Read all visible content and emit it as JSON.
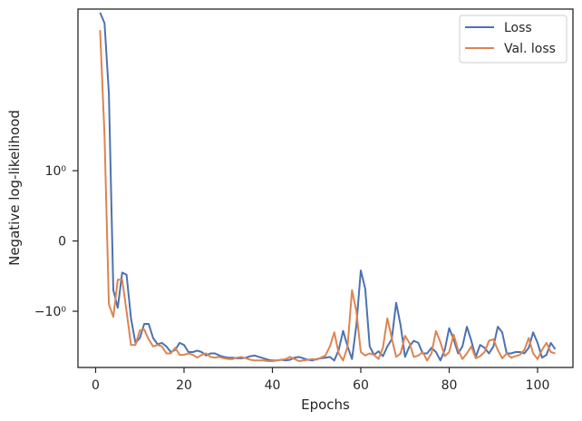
{
  "chart_data": {
    "type": "line",
    "title": "",
    "xlabel": "Epochs",
    "ylabel": "Negative log-likelihood",
    "yscale": "symlog",
    "xlim": [
      -4,
      108
    ],
    "ylim": [
      -1.8,
      3.3
    ],
    "grid": false,
    "legend": "top-right",
    "x_ticks": [
      0,
      20,
      40,
      60,
      80,
      100
    ],
    "x_tick_labels": [
      "0",
      "20",
      "40",
      "60",
      "80",
      "100"
    ],
    "y_ticks": [
      1,
      0,
      -1
    ],
    "y_tick_labels": [
      "10⁰",
      "0",
      "−10⁰"
    ],
    "series": [
      {
        "name": "Loss",
        "color": "#4c72b0",
        "x": [
          1,
          2,
          3,
          4,
          5,
          6,
          7,
          8,
          9,
          10,
          11,
          12,
          13,
          14,
          15,
          16,
          17,
          18,
          19,
          20,
          21,
          22,
          23,
          24,
          25,
          26,
          27,
          28,
          29,
          30,
          31,
          32,
          33,
          34,
          35,
          36,
          37,
          38,
          39,
          40,
          41,
          42,
          43,
          44,
          45,
          46,
          47,
          48,
          49,
          50,
          51,
          52,
          53,
          54,
          55,
          56,
          57,
          58,
          59,
          60,
          61,
          62,
          63,
          64,
          65,
          66,
          67,
          68,
          69,
          70,
          71,
          72,
          73,
          74,
          75,
          76,
          77,
          78,
          79,
          80,
          81,
          82,
          83,
          84,
          85,
          86,
          87,
          88,
          89,
          90,
          91,
          92,
          93,
          94,
          95,
          96,
          97,
          98,
          99,
          100,
          101,
          102,
          103,
          104
        ],
        "y": [
          3.25,
          3.1,
          2.1,
          -0.7,
          -0.95,
          -0.45,
          -0.48,
          -1.1,
          -1.45,
          -1.38,
          -1.18,
          -1.18,
          -1.38,
          -1.47,
          -1.45,
          -1.5,
          -1.58,
          -1.55,
          -1.45,
          -1.48,
          -1.58,
          -1.58,
          -1.56,
          -1.58,
          -1.63,
          -1.6,
          -1.6,
          -1.63,
          -1.65,
          -1.66,
          -1.66,
          -1.67,
          -1.67,
          -1.66,
          -1.64,
          -1.63,
          -1.65,
          -1.67,
          -1.69,
          -1.7,
          -1.7,
          -1.69,
          -1.7,
          -1.69,
          -1.66,
          -1.65,
          -1.67,
          -1.69,
          -1.7,
          -1.68,
          -1.67,
          -1.66,
          -1.65,
          -1.7,
          -1.55,
          -1.28,
          -1.5,
          -1.68,
          -1.2,
          -0.42,
          -0.68,
          -1.5,
          -1.62,
          -1.57,
          -1.64,
          -1.5,
          -1.4,
          -0.88,
          -1.2,
          -1.65,
          -1.5,
          -1.42,
          -1.45,
          -1.6,
          -1.6,
          -1.52,
          -1.58,
          -1.7,
          -1.55,
          -1.24,
          -1.4,
          -1.6,
          -1.5,
          -1.22,
          -1.42,
          -1.65,
          -1.48,
          -1.52,
          -1.6,
          -1.5,
          -1.22,
          -1.3,
          -1.6,
          -1.6,
          -1.58,
          -1.58,
          -1.6,
          -1.52,
          -1.3,
          -1.45,
          -1.66,
          -1.62,
          -1.45,
          -1.54
        ]
      },
      {
        "name": "Val. loss",
        "color": "#dd8452",
        "x": [
          1,
          2,
          3,
          4,
          5,
          6,
          7,
          8,
          9,
          10,
          11,
          12,
          13,
          14,
          15,
          16,
          17,
          18,
          19,
          20,
          21,
          22,
          23,
          24,
          25,
          26,
          27,
          28,
          29,
          30,
          31,
          32,
          33,
          34,
          35,
          36,
          37,
          38,
          39,
          40,
          41,
          42,
          43,
          44,
          45,
          46,
          47,
          48,
          49,
          50,
          51,
          52,
          53,
          54,
          55,
          56,
          57,
          58,
          59,
          60,
          61,
          62,
          63,
          64,
          65,
          66,
          67,
          68,
          69,
          70,
          71,
          72,
          73,
          74,
          75,
          76,
          77,
          78,
          79,
          80,
          81,
          82,
          83,
          84,
          85,
          86,
          87,
          88,
          89,
          90,
          91,
          92,
          93,
          94,
          95,
          96,
          97,
          98,
          99,
          100,
          101,
          102,
          103,
          104
        ],
        "y": [
          3.0,
          1.5,
          -0.9,
          -1.08,
          -0.55,
          -0.55,
          -1.0,
          -1.48,
          -1.48,
          -1.27,
          -1.26,
          -1.4,
          -1.5,
          -1.48,
          -1.5,
          -1.6,
          -1.6,
          -1.52,
          -1.62,
          -1.62,
          -1.6,
          -1.62,
          -1.66,
          -1.62,
          -1.6,
          -1.65,
          -1.66,
          -1.65,
          -1.67,
          -1.68,
          -1.68,
          -1.66,
          -1.65,
          -1.67,
          -1.69,
          -1.7,
          -1.7,
          -1.7,
          -1.71,
          -1.71,
          -1.7,
          -1.69,
          -1.68,
          -1.65,
          -1.68,
          -1.71,
          -1.7,
          -1.69,
          -1.68,
          -1.69,
          -1.66,
          -1.63,
          -1.5,
          -1.3,
          -1.6,
          -1.7,
          -1.5,
          -0.7,
          -1.0,
          -1.58,
          -1.63,
          -1.6,
          -1.62,
          -1.68,
          -1.52,
          -1.1,
          -1.38,
          -1.65,
          -1.6,
          -1.35,
          -1.45,
          -1.65,
          -1.63,
          -1.58,
          -1.7,
          -1.6,
          -1.28,
          -1.44,
          -1.64,
          -1.58,
          -1.33,
          -1.55,
          -1.68,
          -1.6,
          -1.5,
          -1.67,
          -1.64,
          -1.58,
          -1.42,
          -1.4,
          -1.55,
          -1.67,
          -1.6,
          -1.66,
          -1.64,
          -1.62,
          -1.55,
          -1.38,
          -1.6,
          -1.68,
          -1.55,
          -1.45,
          -1.58,
          -1.6
        ]
      }
    ]
  }
}
